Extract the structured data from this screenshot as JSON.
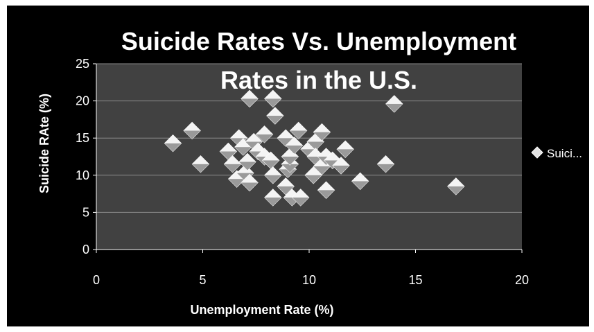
{
  "chart_data": {
    "type": "scatter",
    "title_lines": [
      "Suicide Rates Vs. Unemployment",
      "Rates in the U.S."
    ],
    "xlabel": "Unemployment Rate (%)",
    "ylabel": "Suicide RAte (%)",
    "xlim": [
      0,
      20
    ],
    "ylim": [
      0,
      25
    ],
    "xticks": [
      "0",
      "5",
      "10",
      "15",
      "20"
    ],
    "yticks": [
      "0",
      "5",
      "10",
      "15",
      "20",
      "25"
    ],
    "grid": "horizontal",
    "legend_position": "right",
    "series": [
      {
        "name": "Suici...",
        "points": [
          [
            3.6,
            14.3
          ],
          [
            4.5,
            16.0
          ],
          [
            4.9,
            11.5
          ],
          [
            6.2,
            13.2
          ],
          [
            6.4,
            11.5
          ],
          [
            6.6,
            9.5
          ],
          [
            6.7,
            15.0
          ],
          [
            6.9,
            13.8
          ],
          [
            7.0,
            10.3
          ],
          [
            7.1,
            11.8
          ],
          [
            7.2,
            20.3
          ],
          [
            7.2,
            9.0
          ],
          [
            7.4,
            14.5
          ],
          [
            7.6,
            13.2
          ],
          [
            7.9,
            15.5
          ],
          [
            7.9,
            12.5
          ],
          [
            8.2,
            12.0
          ],
          [
            8.3,
            20.3
          ],
          [
            8.3,
            10.0
          ],
          [
            8.3,
            7.0
          ],
          [
            8.4,
            18.0
          ],
          [
            8.9,
            15.0
          ],
          [
            8.9,
            8.5
          ],
          [
            9.0,
            10.8
          ],
          [
            9.1,
            11.5
          ],
          [
            9.1,
            12.5
          ],
          [
            9.2,
            7.0
          ],
          [
            9.3,
            14.0
          ],
          [
            9.5,
            16.0
          ],
          [
            9.6,
            7.0
          ],
          [
            10.0,
            13.5
          ],
          [
            10.2,
            10.0
          ],
          [
            10.3,
            14.5
          ],
          [
            10.3,
            12.5
          ],
          [
            10.6,
            15.8
          ],
          [
            10.6,
            11.2
          ],
          [
            10.8,
            12.5
          ],
          [
            10.8,
            8.0
          ],
          [
            11.1,
            12.0
          ],
          [
            11.5,
            11.3
          ],
          [
            11.7,
            13.5
          ],
          [
            12.4,
            9.2
          ],
          [
            13.6,
            11.5
          ],
          [
            14.0,
            19.6
          ],
          [
            16.9,
            8.5
          ]
        ]
      }
    ]
  }
}
